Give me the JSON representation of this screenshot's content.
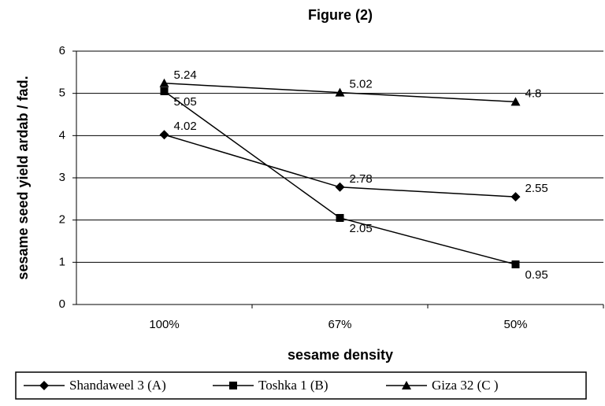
{
  "chart_data": {
    "type": "line",
    "title": "Figure (2)",
    "x_label": "sesame density",
    "y_label": "sesame seed yield ardab / fad.",
    "categories": [
      "100%",
      "67%",
      "50%"
    ],
    "series": [
      {
        "name": "Shandaweel 3 (A)",
        "color": "#000000",
        "marker": "diamond",
        "values": [
          4.02,
          2.78,
          2.55
        ]
      },
      {
        "name": "Toshka 1 (B)",
        "color": "#000000",
        "marker": "square",
        "values": [
          5.05,
          2.05,
          0.95
        ]
      },
      {
        "name": "Giza 32 (C )",
        "color": "#000000",
        "marker": "triangle",
        "values": [
          5.24,
          5.02,
          4.8
        ]
      }
    ],
    "ylim": [
      0,
      6
    ],
    "yticks": [
      0,
      1,
      2,
      3,
      4,
      5,
      6
    ],
    "grid": true,
    "legend": "bottom"
  }
}
